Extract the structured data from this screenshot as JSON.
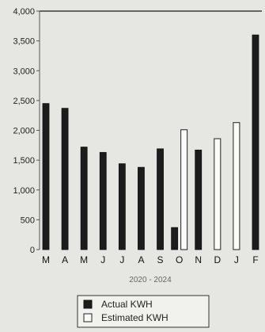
{
  "chart_data": {
    "type": "bar",
    "categories": [
      "M",
      "A",
      "M",
      "J",
      "J",
      "A",
      "S",
      "O",
      "N",
      "D",
      "J",
      "F"
    ],
    "series": [
      {
        "name": "Actual KWH",
        "values": [
          2450,
          2370,
          1720,
          1630,
          1440,
          1380,
          1690,
          370,
          1670,
          null,
          null,
          3600
        ]
      },
      {
        "name": "Estimated KWH",
        "values": [
          null,
          null,
          null,
          null,
          null,
          null,
          null,
          2010,
          null,
          1860,
          2130,
          null
        ]
      }
    ],
    "xlabel": "2020 - 2024",
    "ylabel": "",
    "ylim": [
      0,
      4000
    ],
    "yticks": [
      0,
      500,
      1000,
      1500,
      2000,
      2500,
      3000,
      3500,
      4000
    ],
    "ytick_labels": [
      "0",
      "500",
      "1,000",
      "1,500",
      "2,000",
      "2,500",
      "3,000",
      "3,500",
      "4,000"
    ],
    "grid": false,
    "legend": "bottom-center",
    "colors": {
      "actual": "#1c1c1c",
      "estimated": "#fbfbf9",
      "background": "#e6e6e2",
      "axis": "#1a1a1a"
    }
  }
}
